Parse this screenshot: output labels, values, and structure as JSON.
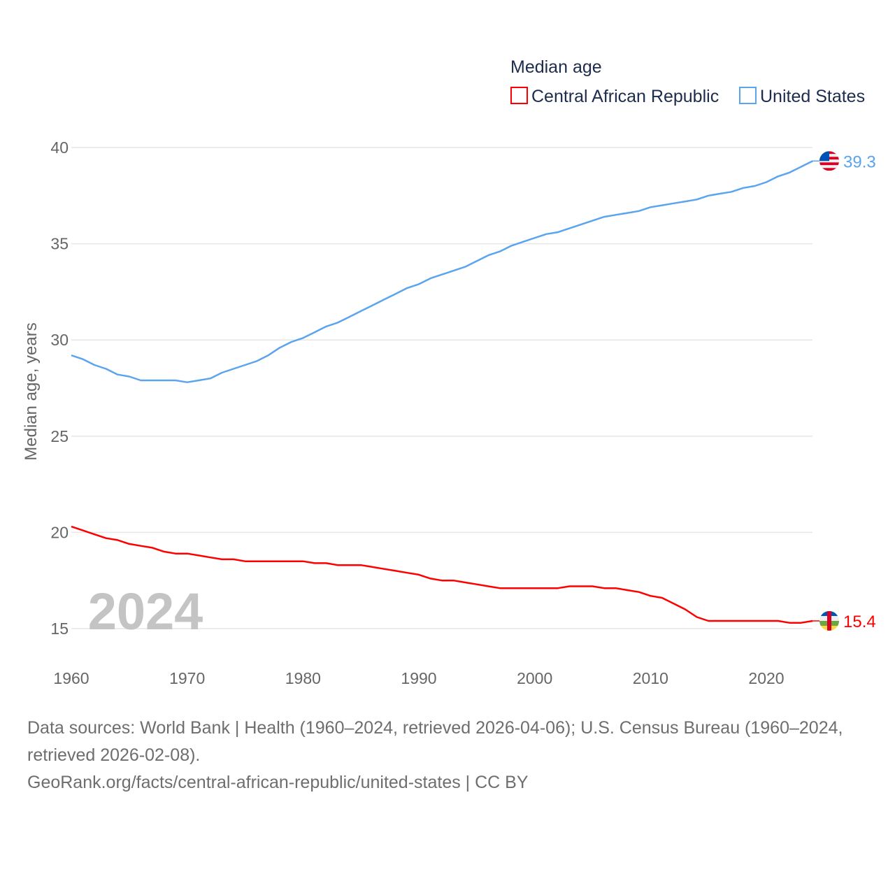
{
  "chart_data": {
    "type": "line",
    "legend_title": "Median age",
    "legend_position": "top-right",
    "ylabel": "Median age, years",
    "ylim": [
      13,
      41.5
    ],
    "yticks": [
      15,
      20,
      25,
      30,
      35,
      40
    ],
    "xticks": [
      1960,
      1970,
      1980,
      1990,
      2000,
      2010,
      2020
    ],
    "xlim": [
      1960,
      2024
    ],
    "year_label": "2024",
    "grid": true,
    "x": [
      1960,
      1961,
      1962,
      1963,
      1964,
      1965,
      1966,
      1967,
      1968,
      1969,
      1970,
      1971,
      1972,
      1973,
      1974,
      1975,
      1976,
      1977,
      1978,
      1979,
      1980,
      1981,
      1982,
      1983,
      1984,
      1985,
      1986,
      1987,
      1988,
      1989,
      1990,
      1991,
      1992,
      1993,
      1994,
      1995,
      1996,
      1997,
      1998,
      1999,
      2000,
      2001,
      2002,
      2003,
      2004,
      2005,
      2006,
      2007,
      2008,
      2009,
      2010,
      2011,
      2012,
      2013,
      2014,
      2015,
      2016,
      2017,
      2018,
      2019,
      2020,
      2021,
      2022,
      2023,
      2024
    ],
    "series": [
      {
        "name": "Central African Republic",
        "color": "#ff0000",
        "end_label": "15.4",
        "values": [
          20.3,
          20.1,
          19.9,
          19.7,
          19.6,
          19.4,
          19.3,
          19.2,
          19.0,
          18.9,
          18.9,
          18.8,
          18.7,
          18.6,
          18.6,
          18.5,
          18.5,
          18.5,
          18.5,
          18.5,
          18.5,
          18.4,
          18.4,
          18.3,
          18.3,
          18.3,
          18.2,
          18.1,
          18.0,
          17.9,
          17.8,
          17.6,
          17.5,
          17.5,
          17.4,
          17.3,
          17.2,
          17.1,
          17.1,
          17.1,
          17.1,
          17.1,
          17.1,
          17.2,
          17.2,
          17.2,
          17.1,
          17.1,
          17.0,
          16.9,
          16.7,
          16.6,
          16.3,
          16.0,
          15.6,
          15.4,
          15.4,
          15.4,
          15.4,
          15.4,
          15.4,
          15.4,
          15.3,
          15.3,
          15.4
        ]
      },
      {
        "name": "United States",
        "color": "#5ba4ee",
        "end_label": "39.3",
        "values": [
          29.2,
          29.0,
          28.7,
          28.5,
          28.2,
          28.1,
          27.9,
          27.9,
          27.9,
          27.9,
          27.8,
          27.9,
          28.0,
          28.3,
          28.5,
          28.7,
          28.9,
          29.2,
          29.6,
          29.9,
          30.1,
          30.4,
          30.7,
          30.9,
          31.2,
          31.5,
          31.8,
          32.1,
          32.4,
          32.7,
          32.9,
          33.2,
          33.4,
          33.6,
          33.8,
          34.1,
          34.4,
          34.6,
          34.9,
          35.1,
          35.3,
          35.5,
          35.6,
          35.8,
          36.0,
          36.2,
          36.4,
          36.5,
          36.6,
          36.7,
          36.9,
          37.0,
          37.1,
          37.2,
          37.3,
          37.5,
          37.6,
          37.7,
          37.9,
          38.0,
          38.2,
          38.5,
          38.7,
          39.0,
          39.3
        ]
      }
    ]
  },
  "footer": {
    "sources": "Data sources: World Bank | Health (1960–2024, retrieved 2026-04-06); U.S. Census Bureau (1960–2024, retrieved 2026-02-08).",
    "link": "GeoRank.org/facts/central-african-republic/united-states | CC BY"
  }
}
